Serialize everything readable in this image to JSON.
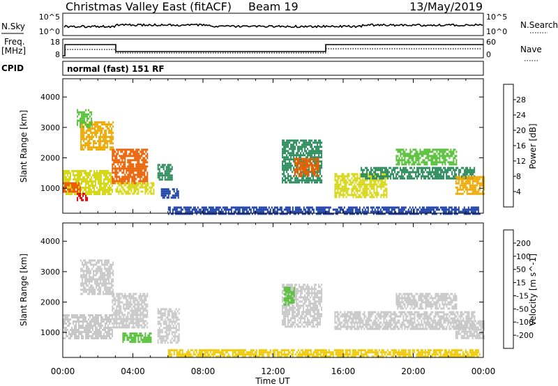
{
  "header": {
    "title": "Christmas Valley East (fitACF)",
    "beam": "Beam 19",
    "date": "13/May/2019"
  },
  "param_panels": {
    "nsky_label": "N.Sky",
    "nsearch_label": "N.Search",
    "nsky_ticks": [
      "10^5",
      "10^0"
    ],
    "nsearch_ticks": [
      "10^5",
      "10^0"
    ],
    "freq_label": "Freq.",
    "freq_unit": "[MHz]",
    "freq_ticks": [
      "18",
      "8"
    ],
    "nave_label": "Nave",
    "nave_ticks": [
      "60",
      "0"
    ],
    "cpid_label": "CPID",
    "cpid_text": "normal (fast) 151 RF"
  },
  "chart_data": [
    {
      "type": "heatmap",
      "name": "power",
      "ylabel": "Slant Range [km]",
      "yticks": [
        1000,
        2000,
        3000,
        4000
      ],
      "ylim": [
        180,
        4600
      ],
      "xlim_hours": [
        0,
        24
      ],
      "colorbar": {
        "label": "Power [dB]",
        "ticks": [
          "28",
          "24",
          "20",
          "16",
          "12",
          "8",
          "4"
        ],
        "colors": [
          "#0000ff",
          "#1a3fa8",
          "#2a8a5a",
          "#56c03a",
          "#d8d81a",
          "#f0a800",
          "#e86000",
          "#d80000"
        ]
      },
      "regions": [
        {
          "t0": 0.0,
          "t1": 2.8,
          "r0": 800,
          "r1": 1600,
          "color": "#d8d81a"
        },
        {
          "t0": 0.0,
          "t1": 1.0,
          "r0": 900,
          "r1": 1200,
          "color": "#e86000"
        },
        {
          "t0": 0.8,
          "t1": 1.4,
          "r0": 600,
          "r1": 850,
          "color": "#d80000"
        },
        {
          "t0": 1.0,
          "t1": 2.9,
          "r0": 2300,
          "r1": 3200,
          "color": "#f0a800"
        },
        {
          "t0": 0.8,
          "t1": 1.6,
          "r0": 3000,
          "r1": 3600,
          "color": "#56c03a"
        },
        {
          "t0": 2.8,
          "t1": 4.8,
          "r0": 1200,
          "r1": 2300,
          "color": "#e86000"
        },
        {
          "t0": 3.0,
          "t1": 5.2,
          "r0": 800,
          "r1": 1200,
          "color": "#d8d81a"
        },
        {
          "t0": 5.4,
          "t1": 6.2,
          "r0": 1300,
          "r1": 1800,
          "color": "#2a8a5a"
        },
        {
          "t0": 5.6,
          "t1": 6.6,
          "r0": 700,
          "r1": 1000,
          "color": "#1a3fa8"
        },
        {
          "t0": 12.5,
          "t1": 14.8,
          "r0": 1200,
          "r1": 2600,
          "color": "#2a8a5a"
        },
        {
          "t0": 13.2,
          "t1": 14.6,
          "r0": 1400,
          "r1": 2000,
          "color": "#e86000"
        },
        {
          "t0": 15.5,
          "t1": 18.5,
          "r0": 700,
          "r1": 1500,
          "color": "#d8d81a"
        },
        {
          "t0": 17.0,
          "t1": 23.5,
          "r0": 1300,
          "r1": 1700,
          "color": "#2a8a5a"
        },
        {
          "t0": 19.0,
          "t1": 22.5,
          "r0": 1800,
          "r1": 2300,
          "color": "#56c03a"
        },
        {
          "t0": 22.4,
          "t1": 24.0,
          "r0": 800,
          "r1": 1400,
          "color": "#f0a800"
        },
        {
          "t0": 6.0,
          "t1": 23.8,
          "r0": 180,
          "r1": 400,
          "color": "#1a3fa8"
        }
      ]
    },
    {
      "type": "heatmap",
      "name": "velocity",
      "ylabel": "Slant Range [km]",
      "xlabel": "Time UT",
      "xticks": [
        "00:00",
        "04:00",
        "08:00",
        "12:00",
        "16:00",
        "20:00",
        "00:00"
      ],
      "yticks": [
        1000,
        2000,
        3000,
        4000
      ],
      "ylim": [
        180,
        4600
      ],
      "xlim_hours": [
        0,
        24
      ],
      "colorbar": {
        "label": "Velocity [m s^-1]",
        "ticks": [
          "200",
          "100",
          "50",
          "15",
          "-15",
          "-50",
          "-100",
          "-200"
        ],
        "colors": [
          "#1a3fa8",
          "#2a8a5a",
          "#2a8a5a",
          "#56c03a",
          "#c8c8c8",
          "#f0c800",
          "#f0a800",
          "#e86000",
          "#d80000"
        ]
      },
      "regions": [
        {
          "t0": 0.0,
          "t1": 2.8,
          "r0": 800,
          "r1": 1600,
          "color": "#c8c8c8"
        },
        {
          "t0": 1.0,
          "t1": 2.9,
          "r0": 2300,
          "r1": 3400,
          "color": "#c8c8c8"
        },
        {
          "t0": 2.8,
          "t1": 4.8,
          "r0": 1200,
          "r1": 2300,
          "color": "#c8c8c8"
        },
        {
          "t0": 3.4,
          "t1": 5.0,
          "r0": 700,
          "r1": 1000,
          "color": "#56c03a"
        },
        {
          "t0": 5.4,
          "t1": 6.6,
          "r0": 700,
          "r1": 1800,
          "color": "#c8c8c8"
        },
        {
          "t0": 12.5,
          "t1": 14.8,
          "r0": 1200,
          "r1": 2600,
          "color": "#c8c8c8"
        },
        {
          "t0": 12.6,
          "t1": 13.2,
          "r0": 1900,
          "r1": 2500,
          "color": "#56c03a"
        },
        {
          "t0": 15.5,
          "t1": 23.5,
          "r0": 1100,
          "r1": 1700,
          "color": "#c8c8c8"
        },
        {
          "t0": 19.0,
          "t1": 22.5,
          "r0": 1800,
          "r1": 2300,
          "color": "#c8c8c8"
        },
        {
          "t0": 6.0,
          "t1": 23.8,
          "r0": 180,
          "r1": 450,
          "color": "#f0c800"
        },
        {
          "t0": 22.4,
          "t1": 24.0,
          "r0": 800,
          "r1": 1400,
          "color": "#c8c8c8"
        }
      ]
    }
  ]
}
